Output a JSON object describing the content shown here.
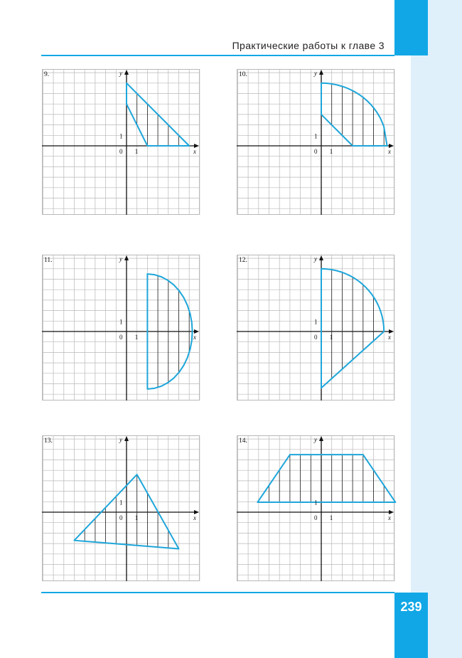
{
  "header": {
    "title": "Практические работы к главе 3"
  },
  "page_number": "239",
  "colors": {
    "accent": "#11a7e6",
    "band": "#dff0fb",
    "grid": "#b8b8b8",
    "shape": "#1ea6da"
  },
  "panels": [
    {
      "number": "9.",
      "axis_x": "x",
      "axis_y": "y",
      "origin": "0",
      "unit_x": "1",
      "unit_y": "1"
    },
    {
      "number": "10.",
      "axis_x": "x",
      "axis_y": "y",
      "origin": "0",
      "unit_x": "1",
      "unit_y": "1"
    },
    {
      "number": "11.",
      "axis_x": "x",
      "axis_y": "y",
      "origin": "0",
      "unit_x": "1",
      "unit_y": "1"
    },
    {
      "number": "12.",
      "axis_x": "x",
      "axis_y": "y",
      "origin": "0",
      "unit_x": "1",
      "unit_y": "1"
    },
    {
      "number": "13.",
      "axis_x": "x",
      "axis_y": "y",
      "origin": "0",
      "unit_x": "1",
      "unit_y": "1"
    },
    {
      "number": "14.",
      "axis_x": "x",
      "axis_y": "y",
      "origin": "0",
      "unit_x": "1",
      "unit_y": "1"
    }
  ]
}
